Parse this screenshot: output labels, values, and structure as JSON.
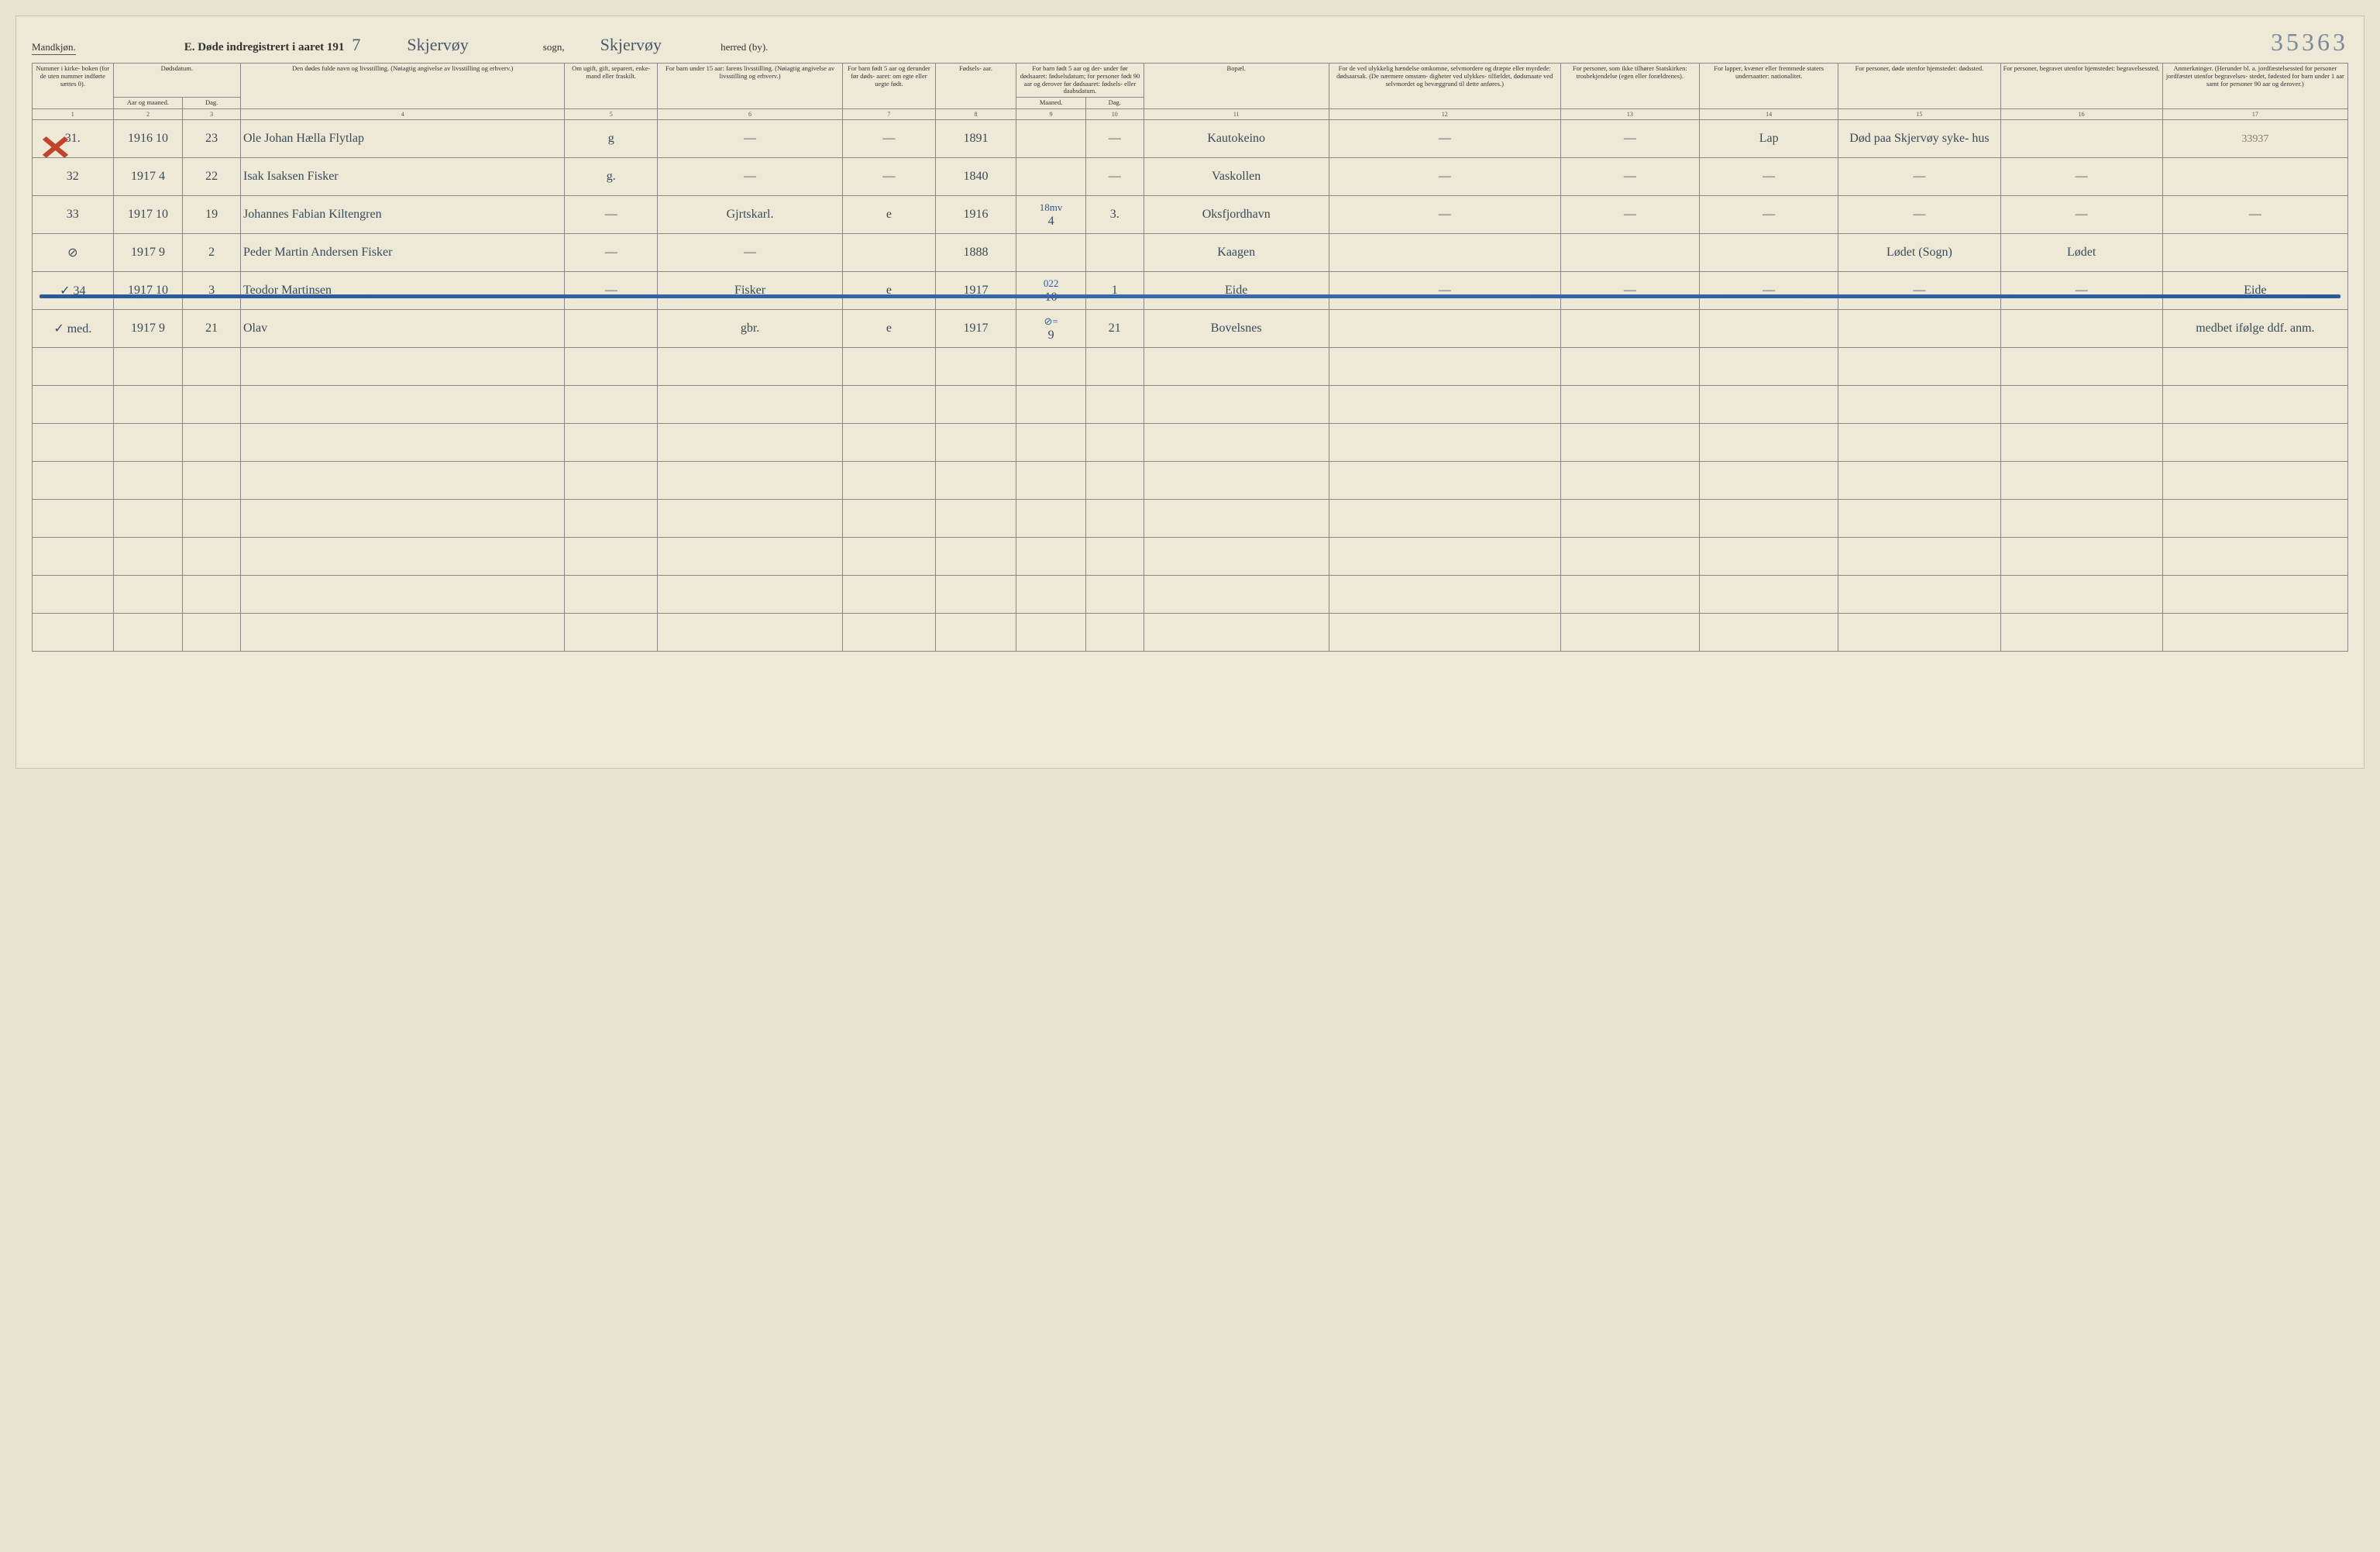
{
  "header": {
    "gender": "Mandkjøn.",
    "title_prefix": "E.  Døde indregistrert i aaret 191",
    "year_suffix": "7",
    "sogn_name": "Skjervøy",
    "sogn_label": "sogn,",
    "herred_name": "Skjervøy",
    "herred_label": "herred (by).",
    "stamp": "35363"
  },
  "columns": {
    "c1": "Nummer i kirke- boken (for de uten nummer indførte sættes 0).",
    "c2a": "Dødsdatum.",
    "c2b": "Aar og maaned.",
    "c2c": "Dag.",
    "c4": "Den dødes fulde navn og livsstilling. (Nøiagtig angivelse av livsstilling og erhverv.)",
    "c5": "Om ugift, gift, separert, enke- mand eller fraskilt.",
    "c6": "For barn under 15 aar: farens livsstilling. (Nøiagtig angivelse av livsstilling og erhverv.)",
    "c7": "For barn født 5 aar og derunder før døds- aaret: om egte eller uegte født.",
    "c8": "Fødsels- aar.",
    "c9": "For barn født 5 aar og der- under før dødsaaret: fødselsdatum; for personer født 90 aar og derover før dødsaaret: fødsels- eller daabsdatum.",
    "c9a": "Maaned.",
    "c9b": "Dag.",
    "c11": "Bopæl.",
    "c12": "For de ved ulykkelig hændelse omkomne, selvmordere og dræpte eller myrdede: dødsaarsak. (De nærmere omstæn- digheter ved ulykkes- tilfældet, dødsmaate ved selvmordet og bevæggrund til dette anføres.)",
    "c13": "For personer, som ikke tilhører Statskirken: trosbekjendelse (egen eller forældrenes).",
    "c14": "For lapper, kvæner eller fremmede staters undersaatter: nationalitet.",
    "c15": "For personer, døde utenfor hjemstedet: dødssted.",
    "c16": "For personer, begravet utenfor hjemstedet: begravelsessted.",
    "c17": "Anmerkninger. (Herunder bl. a. jordfæstelsessted for personer jordfæstet utenfor begravelses- stedet, fødested for barn under 1 aar samt for personer 90 aar og derover.)"
  },
  "colnums": [
    "1",
    "2",
    "3",
    "4",
    "5",
    "6",
    "7",
    "8",
    "9",
    "10",
    "11",
    "12",
    "13",
    "14",
    "15",
    "16",
    "17"
  ],
  "rows": [
    {
      "num": "31.",
      "year": "1916",
      "month": "10",
      "day": "23",
      "name": "Ole Johan Hælla   Flytlap",
      "status": "g",
      "farens": "—",
      "egte": "—",
      "faar": "1891",
      "fm": "",
      "fd": "—",
      "bopael": "Kautokeino",
      "c12": "—",
      "c13": "—",
      "c14": "Lap",
      "c15": "Død paa Skjervøy syke- hus",
      "c16": "",
      "c17": "33937",
      "ann": ""
    },
    {
      "num": "32",
      "year": "1917",
      "month": "4",
      "day": "22",
      "name": "Isak Isaksen   Fisker",
      "status": "g.",
      "farens": "—",
      "egte": "—",
      "faar": "1840",
      "fm": "",
      "fd": "—",
      "bopael": "Vaskollen",
      "c12": "—",
      "c13": "—",
      "c14": "—",
      "c15": "—",
      "c16": "—",
      "c17": "",
      "ann": ""
    },
    {
      "num": "33",
      "year": "1917",
      "month": "10",
      "day": "19",
      "name": "Johannes Fabian Kiltengren",
      "status": "—",
      "farens": "Gjrtskarl.",
      "egte": "e",
      "faar": "1916",
      "fm": "4",
      "fd": "3.",
      "bopael": "Oksfjordhavn",
      "c12": "—",
      "c13": "—",
      "c14": "—",
      "c15": "—",
      "c16": "—",
      "c17": "—",
      "ann": "18mv"
    },
    {
      "num": "⊘",
      "year": "1917",
      "month": "9",
      "day": "2",
      "name": "Peder Martin Andersen   Fisker",
      "status": "—",
      "farens": "—",
      "egte": "",
      "faar": "1888",
      "fm": "",
      "fd": "",
      "bopael": "Kaagen",
      "c12": "",
      "c13": "",
      "c14": "",
      "c15": "Lødet (Sogn)",
      "c16": "Lødet",
      "c17": "",
      "ann": ""
    },
    {
      "num": "✓ 34",
      "year": "1917",
      "month": "10",
      "day": "3",
      "name": "Teodor Martinsen",
      "status": "—",
      "farens": "Fisker",
      "egte": "e",
      "faar": "1917",
      "fm": "10",
      "fd": "1",
      "bopael": "Eide",
      "c12": "—",
      "c13": "—",
      "c14": "—",
      "c15": "—",
      "c16": "—",
      "c17": "Eide",
      "ann": "022"
    },
    {
      "num": "✓ med.",
      "year": "1917",
      "month": "9",
      "day": "21",
      "name": "Olav",
      "status": "",
      "farens": "gbr.",
      "egte": "e",
      "faar": "1917",
      "fm": "9",
      "fd": "21",
      "bopael": "Bovelsnes",
      "c12": "",
      "c13": "",
      "c14": "",
      "c15": "",
      "c16": "",
      "c17": "medbet ifølge ddf. anm.",
      "ann": "⊘="
    }
  ]
}
